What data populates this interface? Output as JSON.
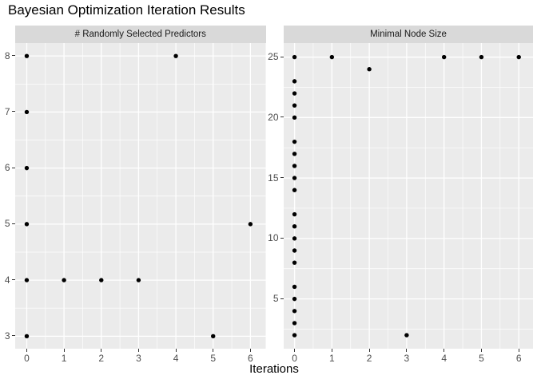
{
  "title": "Bayesian Optimization Iteration Results",
  "x_axis_title": "Iterations",
  "colors": {
    "panel_bg": "#EBEBEB",
    "strip_bg": "#D9D9D9",
    "grid": "#FFFFFF",
    "point": "#000000",
    "tick_label": "#4D4D4D",
    "strip_text": "#1A1A1A",
    "title_text": "#000000"
  },
  "chart_data": [
    {
      "type": "scatter",
      "facet_label": "# Randomly Selected Predictors",
      "xlabel": "Iterations",
      "x_ticks": [
        0,
        1,
        2,
        3,
        4,
        5,
        6
      ],
      "y_ticks": [
        3,
        4,
        5,
        6,
        7,
        8
      ],
      "xlim": [
        -0.31,
        6.41
      ],
      "ylim": [
        2.77,
        8.23
      ],
      "grid": "on",
      "points": [
        [
          0,
          8
        ],
        [
          0,
          7
        ],
        [
          0,
          6
        ],
        [
          0,
          5
        ],
        [
          0,
          4
        ],
        [
          0,
          3
        ],
        [
          1,
          4
        ],
        [
          2,
          4
        ],
        [
          3,
          4
        ],
        [
          4,
          8
        ],
        [
          5,
          3
        ],
        [
          6,
          5
        ]
      ]
    },
    {
      "type": "scatter",
      "facet_label": "Minimal Node Size",
      "xlabel": "Iterations",
      "x_ticks": [
        0,
        1,
        2,
        3,
        4,
        5,
        6
      ],
      "y_ticks": [
        5,
        10,
        15,
        20,
        25
      ],
      "xlim": [
        -0.29,
        6.38
      ],
      "ylim": [
        0.85,
        26.16
      ],
      "grid": "on",
      "points": [
        [
          0,
          25
        ],
        [
          0,
          23
        ],
        [
          0,
          22
        ],
        [
          0,
          21
        ],
        [
          0,
          20
        ],
        [
          0,
          18
        ],
        [
          0,
          17
        ],
        [
          0,
          16
        ],
        [
          0,
          15
        ],
        [
          0,
          14
        ],
        [
          0,
          12
        ],
        [
          0,
          11
        ],
        [
          0,
          10
        ],
        [
          0,
          9
        ],
        [
          0,
          8
        ],
        [
          0,
          6
        ],
        [
          0,
          5
        ],
        [
          0,
          4
        ],
        [
          0,
          3
        ],
        [
          0,
          2
        ],
        [
          1,
          25
        ],
        [
          2,
          24
        ],
        [
          3,
          2
        ],
        [
          4,
          25
        ],
        [
          5,
          25
        ],
        [
          6,
          25
        ]
      ]
    }
  ]
}
